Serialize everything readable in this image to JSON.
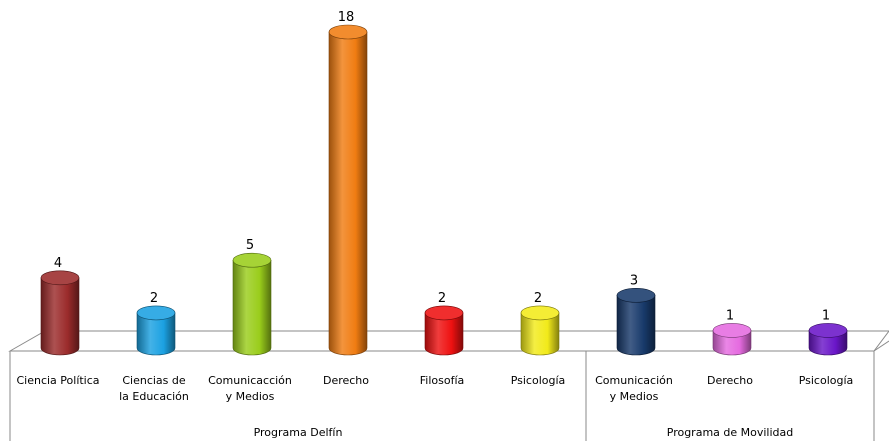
{
  "chart_data": {
    "type": "bar",
    "style": "3d-cylinder",
    "grid": false,
    "legend": "none",
    "ylim": [
      0,
      18
    ],
    "categories": [
      "Ciencia Política",
      "Ciencias de la Educación",
      "Comunicacción y Medios",
      "Derecho",
      "Filosofía",
      "Psicología",
      "Comunicación y Medios",
      "Derecho",
      "Psicología"
    ],
    "values": [
      4,
      2,
      5,
      18,
      2,
      2,
      3,
      1,
      1
    ],
    "colors": [
      "#9B2B2B",
      "#1BA1E2",
      "#9ACD1B",
      "#F07C12",
      "#EE1111",
      "#F2EA1A",
      "#183A6B",
      "#E56BE0",
      "#6A16C8"
    ],
    "groups": [
      {
        "label": "Programa Delfín",
        "count": 6
      },
      {
        "label": "Programa de Movilidad",
        "count": 3
      }
    ]
  }
}
